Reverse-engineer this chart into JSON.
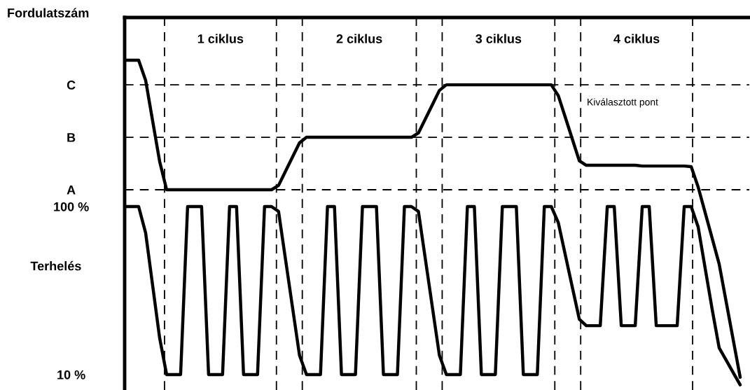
{
  "chart_data": {
    "type": "line",
    "ylabel": "Fordulatszám",
    "categories": [
      null,
      null,
      null,
      null,
      null,
      null,
      null,
      null,
      null,
      null,
      null,
      null,
      null,
      null,
      null,
      null,
      null,
      null,
      null,
      null,
      null,
      null,
      null,
      null,
      null,
      null,
      null,
      null,
      null,
      null,
      null,
      null,
      null,
      null,
      null,
      null,
      null,
      null,
      null,
      null,
      null,
      null,
      null,
      null,
      null,
      null,
      null,
      null,
      null,
      null,
      null,
      null,
      null,
      null,
      null,
      null,
      null,
      null,
      null,
      null,
      null,
      null,
      null,
      null,
      null,
      null,
      null,
      null,
      null,
      null,
      null,
      null,
      null,
      null,
      null,
      null,
      null,
      null,
      null,
      null,
      null,
      null,
      null,
      null,
      null,
      null,
      null,
      null,
      null
    ],
    "ylim": [
      1.75,
      201.25
    ],
    "yticks": [
      {
        "value": 10,
        "label": "10 %"
      },
      {
        "value": 100,
        "label": "100 %"
      },
      {
        "value": 109,
        "label": "A"
      },
      {
        "value": 137.1,
        "label": "B"
      },
      {
        "value": 165.2,
        "label": "C"
      }
    ],
    "tick_labels": "y",
    "grid": false,
    "legend": false,
    "marker": "none",
    "line_style": "solid",
    "series": [
      {
        "color": "#000000",
        "values": [
          178.4,
          178.4,
          178.4,
          167.6,
          145.9,
          124.2,
          109,
          109,
          109,
          109,
          109,
          109,
          109,
          109,
          109,
          109,
          109,
          109,
          109,
          109,
          109,
          109,
          111.3,
          118.9,
          126.5,
          134.1,
          137.1,
          137.1,
          137.1,
          137.1,
          137.1,
          137.1,
          137.1,
          137.1,
          137.1,
          137.1,
          137.1,
          137.1,
          137.1,
          137.1,
          137.1,
          137.1,
          139.4,
          147.0,
          154.6,
          162.2,
          165.2,
          165.2,
          165.2,
          165.2,
          165.2,
          165.2,
          165.2,
          165.2,
          165.2,
          165.2,
          165.2,
          165.2,
          165.2,
          165.2,
          165.2,
          165.2,
          159.4,
          147.8,
          136.2,
          124.5,
          122.1,
          122.1,
          122.1,
          122.1,
          122.1,
          122.1,
          122.1,
          122.1,
          121.7,
          121.7,
          121.7,
          121.7,
          121.7,
          121.7,
          121.7,
          121.4,
          110.4,
          96.7,
          83.0,
          69.2,
          49.0,
          28.8,
          8.6
        ]
      },
      {
        "color": "#000000",
        "values": [
          100,
          100,
          100,
          85.9,
          57.8,
          29.7,
          10,
          10,
          10,
          100,
          100,
          100,
          10,
          10,
          10,
          100,
          100,
          10,
          10,
          10,
          100,
          100,
          97.4,
          71.7,
          46.0,
          20.3,
          10,
          10,
          10,
          100,
          100,
          10,
          10,
          10,
          100,
          100,
          100,
          10,
          10,
          10,
          100,
          100,
          97.4,
          71.7,
          46.0,
          20.3,
          10,
          10,
          10,
          100,
          100,
          10,
          10,
          10,
          100,
          100,
          100,
          10,
          10,
          10,
          100,
          100,
          91.4,
          74.1,
          56.9,
          39.7,
          36.2,
          36.2,
          36.2,
          100,
          100,
          36.2,
          36.2,
          36.2,
          100,
          100,
          36.2,
          36.2,
          36.2,
          36.2,
          100,
          100,
          89.0,
          66.9,
          44.9,
          24.3,
          17.7,
          11.1,
          4.5
        ]
      }
    ],
    "ref_lines": [
      {
        "axis": "y",
        "value": 109,
        "line_style": "dashed",
        "color": "#000000"
      },
      {
        "axis": "y",
        "value": 137.1,
        "line_style": "dashed",
        "color": "#000000"
      },
      {
        "axis": "y",
        "value": 165.2,
        "line_style": "dashed",
        "color": "#000000"
      }
    ],
    "annotations": [
      "Terhelés",
      "Kiválasztott pont",
      "1 ciklus",
      "2 ciklus",
      "3 ciklus",
      "4 ciklus"
    ]
  }
}
